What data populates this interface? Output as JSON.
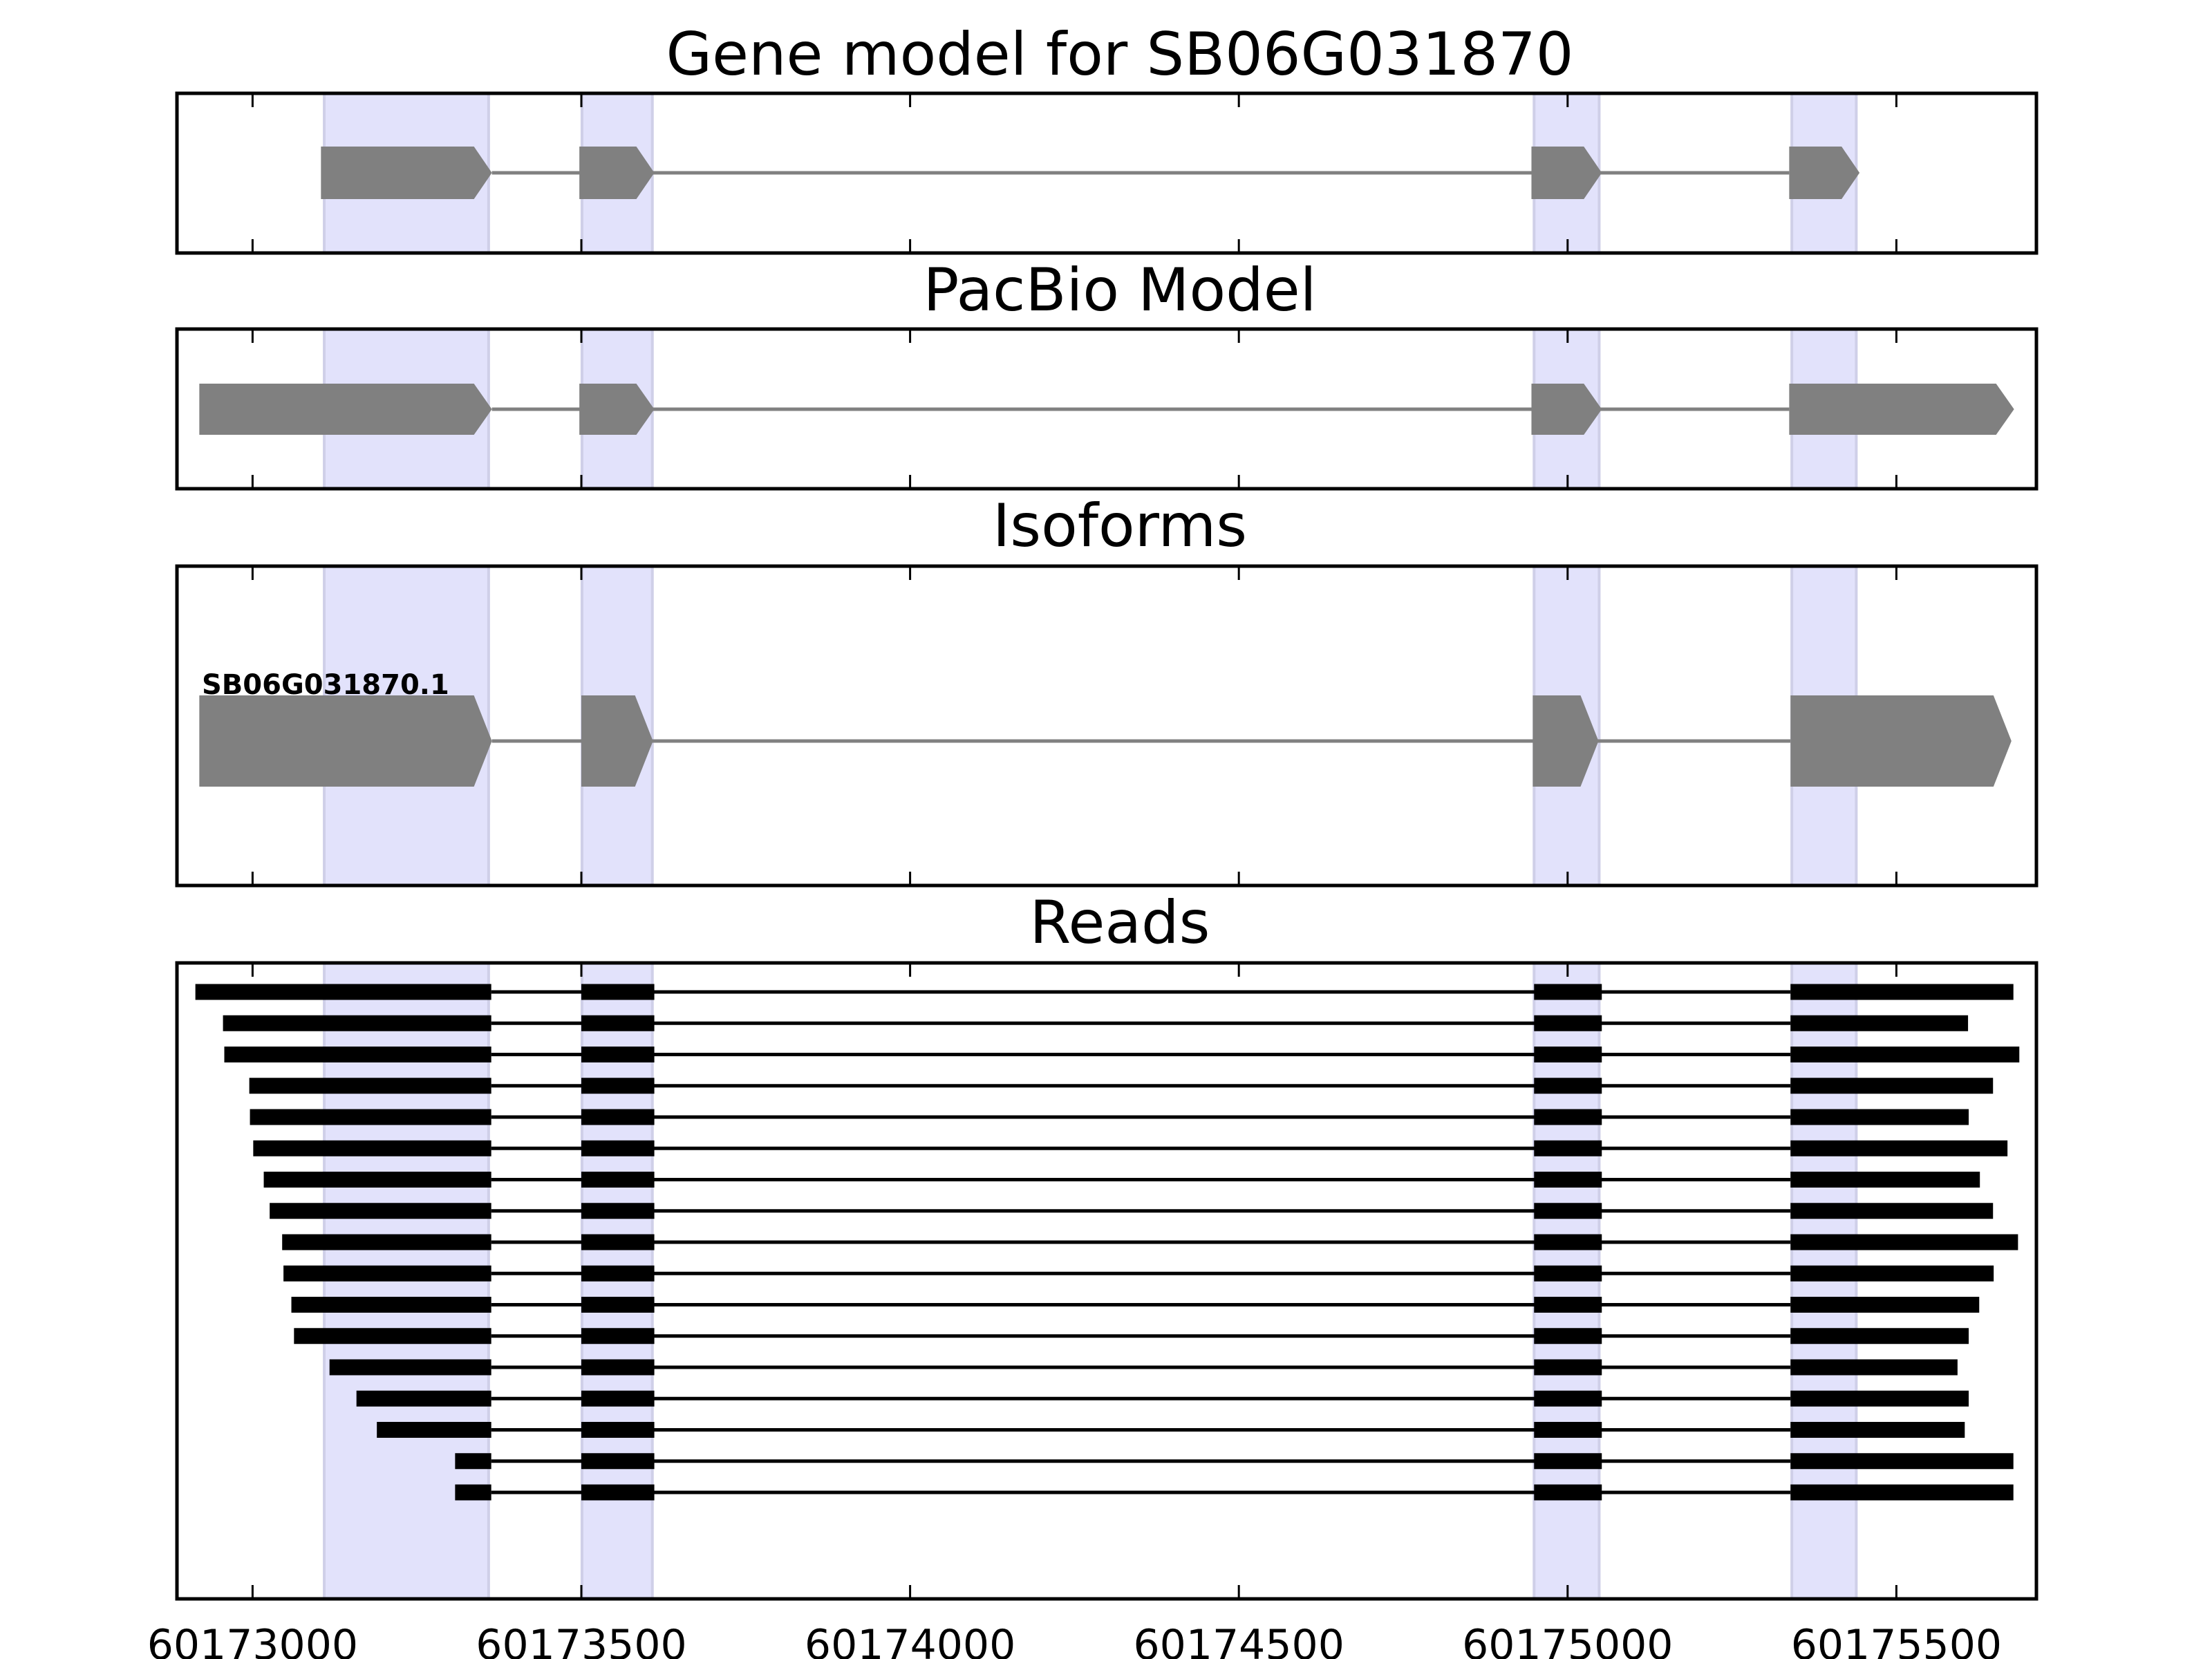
{
  "chart_data": {
    "type": "gene-track",
    "xlim": [
      60172885,
      60175713
    ],
    "x_ticks": [
      60173000,
      60173500,
      60174000,
      60174500,
      60175000,
      60175500
    ],
    "x_tick_labels": [
      "60173000",
      "60173500",
      "60174000",
      "60174500",
      "60175000",
      "60175500"
    ],
    "colors": {
      "model": "#808080",
      "reads": "#000000",
      "shade": "#e2e2fb",
      "shade_edge": "#cfcfe8"
    },
    "shaded_regions": [
      [
        60173109,
        60173359
      ],
      [
        60173501,
        60173608
      ],
      [
        60174949,
        60175048
      ],
      [
        60175341,
        60175439
      ]
    ],
    "panels": [
      {
        "title": "Gene model for SB06G031870",
        "kind": "model",
        "exons": [
          [
            60173104,
            60173364
          ],
          [
            60173497,
            60173611
          ],
          [
            60174945,
            60175052
          ],
          [
            60175337,
            60175444
          ]
        ]
      },
      {
        "title": "PacBio Model",
        "kind": "model",
        "exons": [
          [
            60172919,
            60173364
          ],
          [
            60173497,
            60173611
          ],
          [
            60174945,
            60175052
          ],
          [
            60175337,
            60175679
          ]
        ]
      },
      {
        "title": "Isoforms",
        "kind": "model",
        "label": "SB06G031870.1",
        "exons": [
          [
            60172919,
            60173364
          ],
          [
            60173500,
            60173609
          ],
          [
            60174947,
            60175047
          ],
          [
            60175339,
            60175675
          ]
        ]
      },
      {
        "title": "Reads",
        "kind": "reads",
        "inner_exons": [
          [
            60173500,
            60173611
          ],
          [
            60174949,
            60175052
          ]
        ],
        "exon1_end": 60173363,
        "exon4_start": 60175339,
        "reads": [
          [
            60172913,
            60175678
          ],
          [
            60172955,
            60175609
          ],
          [
            60172957,
            60175687
          ],
          [
            60172995,
            60175647
          ],
          [
            60172996,
            60175610
          ],
          [
            60173001,
            60175669
          ],
          [
            60173017,
            60175627
          ],
          [
            60173026,
            60175647
          ],
          [
            60173045,
            60175685
          ],
          [
            60173047,
            60175648
          ],
          [
            60173059,
            60175626
          ],
          [
            60173063,
            60175610
          ],
          [
            60173117,
            60175593
          ],
          [
            60173158,
            60175610
          ],
          [
            60173189,
            60175604
          ],
          [
            60173308,
            60175678
          ],
          [
            60173308,
            60175678
          ]
        ]
      }
    ]
  }
}
